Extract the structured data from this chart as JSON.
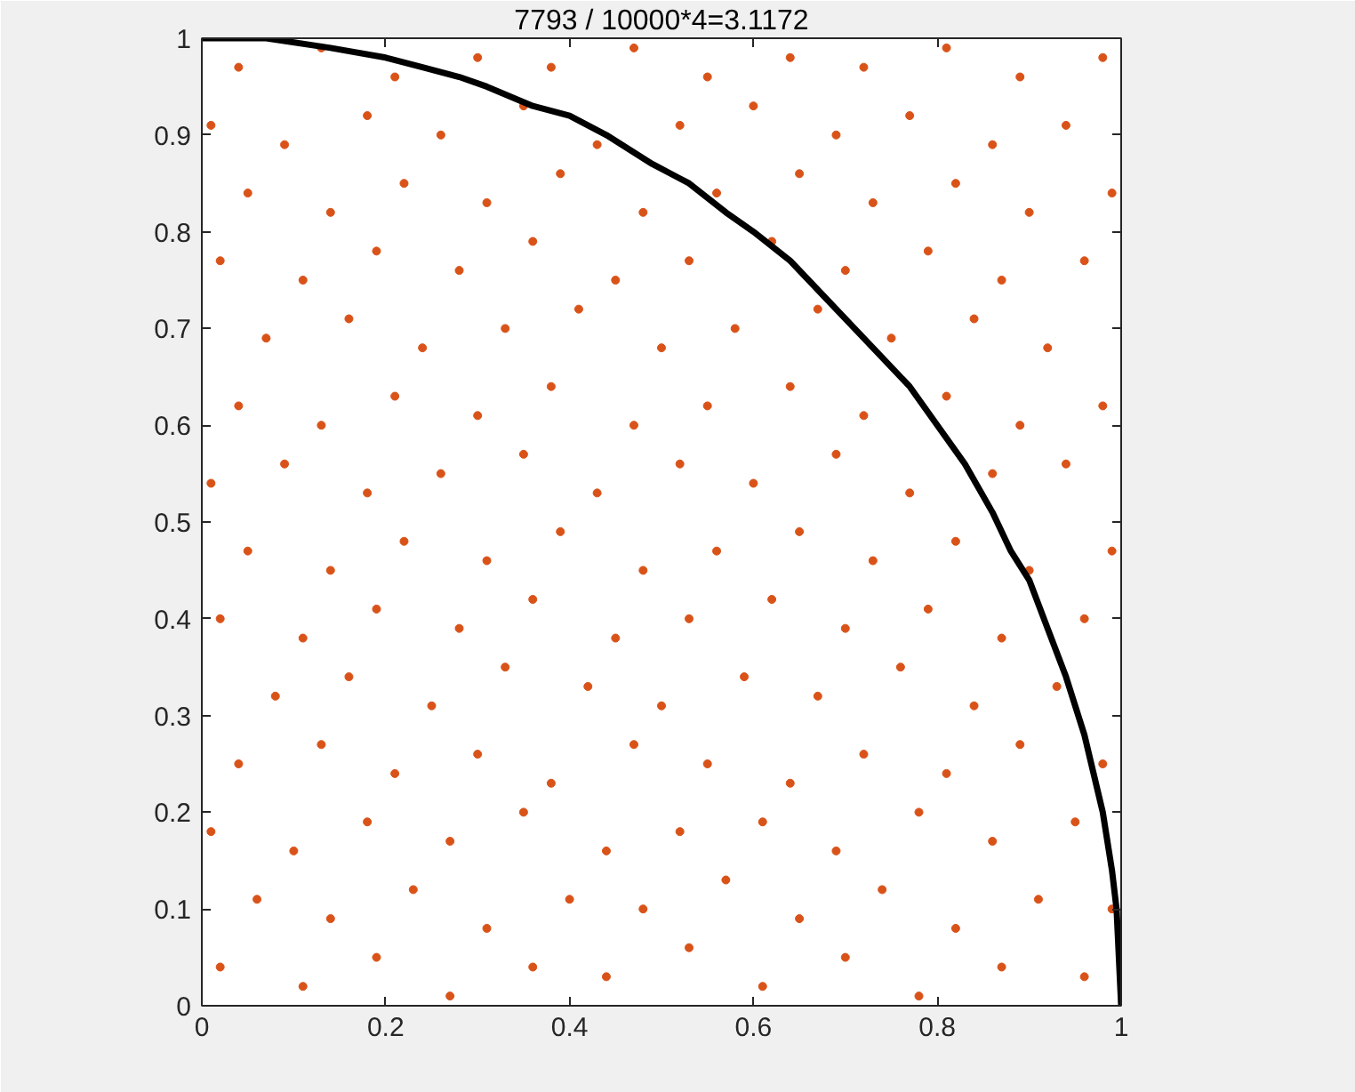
{
  "chart_data": {
    "type": "scatter",
    "title": "7793 / 10000*4=3.1172",
    "xlim": [
      0,
      1
    ],
    "ylim": [
      0,
      1
    ],
    "xticks": [
      0,
      0.2,
      0.4,
      0.6,
      0.8,
      1
    ],
    "yticks": [
      0,
      0.1,
      0.2,
      0.3,
      0.4,
      0.5,
      0.6,
      0.7,
      0.8,
      0.9,
      1
    ],
    "marker": "circle",
    "series": [
      {
        "color": "#d95319",
        "x": [
          0.02,
          0.11,
          0.19,
          0.27,
          0.36,
          0.44,
          0.53,
          0.61,
          0.7,
          0.78,
          0.87,
          0.96,
          0.06,
          0.14,
          0.23,
          0.31,
          0.4,
          0.48,
          0.57,
          0.65,
          0.74,
          0.82,
          0.91,
          0.99,
          0.01,
          0.1,
          0.18,
          0.27,
          0.35,
          0.44,
          0.52,
          0.61,
          0.69,
          0.78,
          0.86,
          0.95,
          0.04,
          0.13,
          0.21,
          0.3,
          0.38,
          0.47,
          0.55,
          0.64,
          0.72,
          0.81,
          0.89,
          0.98,
          0.08,
          0.16,
          0.25,
          0.33,
          0.42,
          0.5,
          0.59,
          0.67,
          0.76,
          0.84,
          0.93,
          0.02,
          0.11,
          0.19,
          0.28,
          0.36,
          0.45,
          0.53,
          0.62,
          0.7,
          0.79,
          0.87,
          0.96,
          0.05,
          0.14,
          0.22,
          0.31,
          0.39,
          0.48,
          0.56,
          0.65,
          0.73,
          0.82,
          0.9,
          0.99,
          0.01,
          0.09,
          0.18,
          0.26,
          0.35,
          0.43,
          0.52,
          0.6,
          0.69,
          0.77,
          0.86,
          0.94,
          0.04,
          0.13,
          0.21,
          0.3,
          0.38,
          0.47,
          0.55,
          0.64,
          0.72,
          0.81,
          0.89,
          0.98,
          0.07,
          0.16,
          0.24,
          0.33,
          0.41,
          0.5,
          0.58,
          0.67,
          0.75,
          0.84,
          0.92,
          0.02,
          0.11,
          0.19,
          0.28,
          0.36,
          0.45,
          0.53,
          0.62,
          0.7,
          0.79,
          0.87,
          0.96,
          0.05,
          0.14,
          0.22,
          0.31,
          0.39,
          0.48,
          0.56,
          0.65,
          0.73,
          0.82,
          0.9,
          0.99,
          0.01,
          0.09,
          0.18,
          0.26,
          0.35,
          0.43,
          0.52,
          0.6,
          0.69,
          0.77,
          0.86,
          0.94,
          0.04,
          0.13,
          0.21,
          0.3,
          0.38,
          0.47,
          0.55,
          0.64,
          0.72,
          0.81,
          0.89,
          0.98
        ],
        "values": [
          0.04,
          0.02,
          0.05,
          0.01,
          0.04,
          0.03,
          0.06,
          0.02,
          0.05,
          0.01,
          0.04,
          0.03,
          0.11,
          0.09,
          0.12,
          0.08,
          0.11,
          0.1,
          0.13,
          0.09,
          0.12,
          0.08,
          0.11,
          0.1,
          0.18,
          0.16,
          0.19,
          0.17,
          0.2,
          0.16,
          0.18,
          0.19,
          0.16,
          0.2,
          0.17,
          0.19,
          0.25,
          0.27,
          0.24,
          0.26,
          0.23,
          0.27,
          0.25,
          0.23,
          0.26,
          0.24,
          0.27,
          0.25,
          0.32,
          0.34,
          0.31,
          0.35,
          0.33,
          0.31,
          0.34,
          0.32,
          0.35,
          0.31,
          0.33,
          0.4,
          0.38,
          0.41,
          0.39,
          0.42,
          0.38,
          0.4,
          0.42,
          0.39,
          0.41,
          0.38,
          0.4,
          0.47,
          0.45,
          0.48,
          0.46,
          0.49,
          0.45,
          0.47,
          0.49,
          0.46,
          0.48,
          0.45,
          0.47,
          0.54,
          0.56,
          0.53,
          0.55,
          0.57,
          0.53,
          0.56,
          0.54,
          0.57,
          0.53,
          0.55,
          0.56,
          0.62,
          0.6,
          0.63,
          0.61,
          0.64,
          0.6,
          0.62,
          0.64,
          0.61,
          0.63,
          0.6,
          0.62,
          0.69,
          0.71,
          0.68,
          0.7,
          0.72,
          0.68,
          0.7,
          0.72,
          0.69,
          0.71,
          0.68,
          0.77,
          0.75,
          0.78,
          0.76,
          0.79,
          0.75,
          0.77,
          0.79,
          0.76,
          0.78,
          0.75,
          0.77,
          0.84,
          0.82,
          0.85,
          0.83,
          0.86,
          0.82,
          0.84,
          0.86,
          0.83,
          0.85,
          0.82,
          0.84,
          0.91,
          0.89,
          0.92,
          0.9,
          0.93,
          0.89,
          0.91,
          0.93,
          0.9,
          0.92,
          0.89,
          0.91,
          0.97,
          0.99,
          0.96,
          0.98,
          0.97,
          0.99,
          0.96,
          0.98,
          0.97,
          0.99,
          0.96,
          0.98
        ]
      },
      {
        "type": "line",
        "color": "#000000",
        "marker": "none",
        "line_style": "solid",
        "x": [
          0,
          0.07,
          0.14,
          0.2,
          0.24,
          0.28,
          0.31,
          0.36,
          0.4,
          0.44,
          0.49,
          0.53,
          0.57,
          0.6,
          0.64,
          0.68,
          0.71,
          0.73,
          0.77,
          0.8,
          0.83,
          0.86,
          0.88,
          0.9,
          0.92,
          0.94,
          0.96,
          0.97,
          0.98,
          0.99,
          0.995,
          1
        ],
        "values": [
          1,
          1,
          0.99,
          0.98,
          0.97,
          0.96,
          0.95,
          0.93,
          0.92,
          0.9,
          0.87,
          0.85,
          0.82,
          0.8,
          0.77,
          0.73,
          0.7,
          0.68,
          0.64,
          0.6,
          0.56,
          0.51,
          0.47,
          0.44,
          0.39,
          0.34,
          0.28,
          0.24,
          0.2,
          0.14,
          0.1,
          0
        ]
      }
    ]
  }
}
